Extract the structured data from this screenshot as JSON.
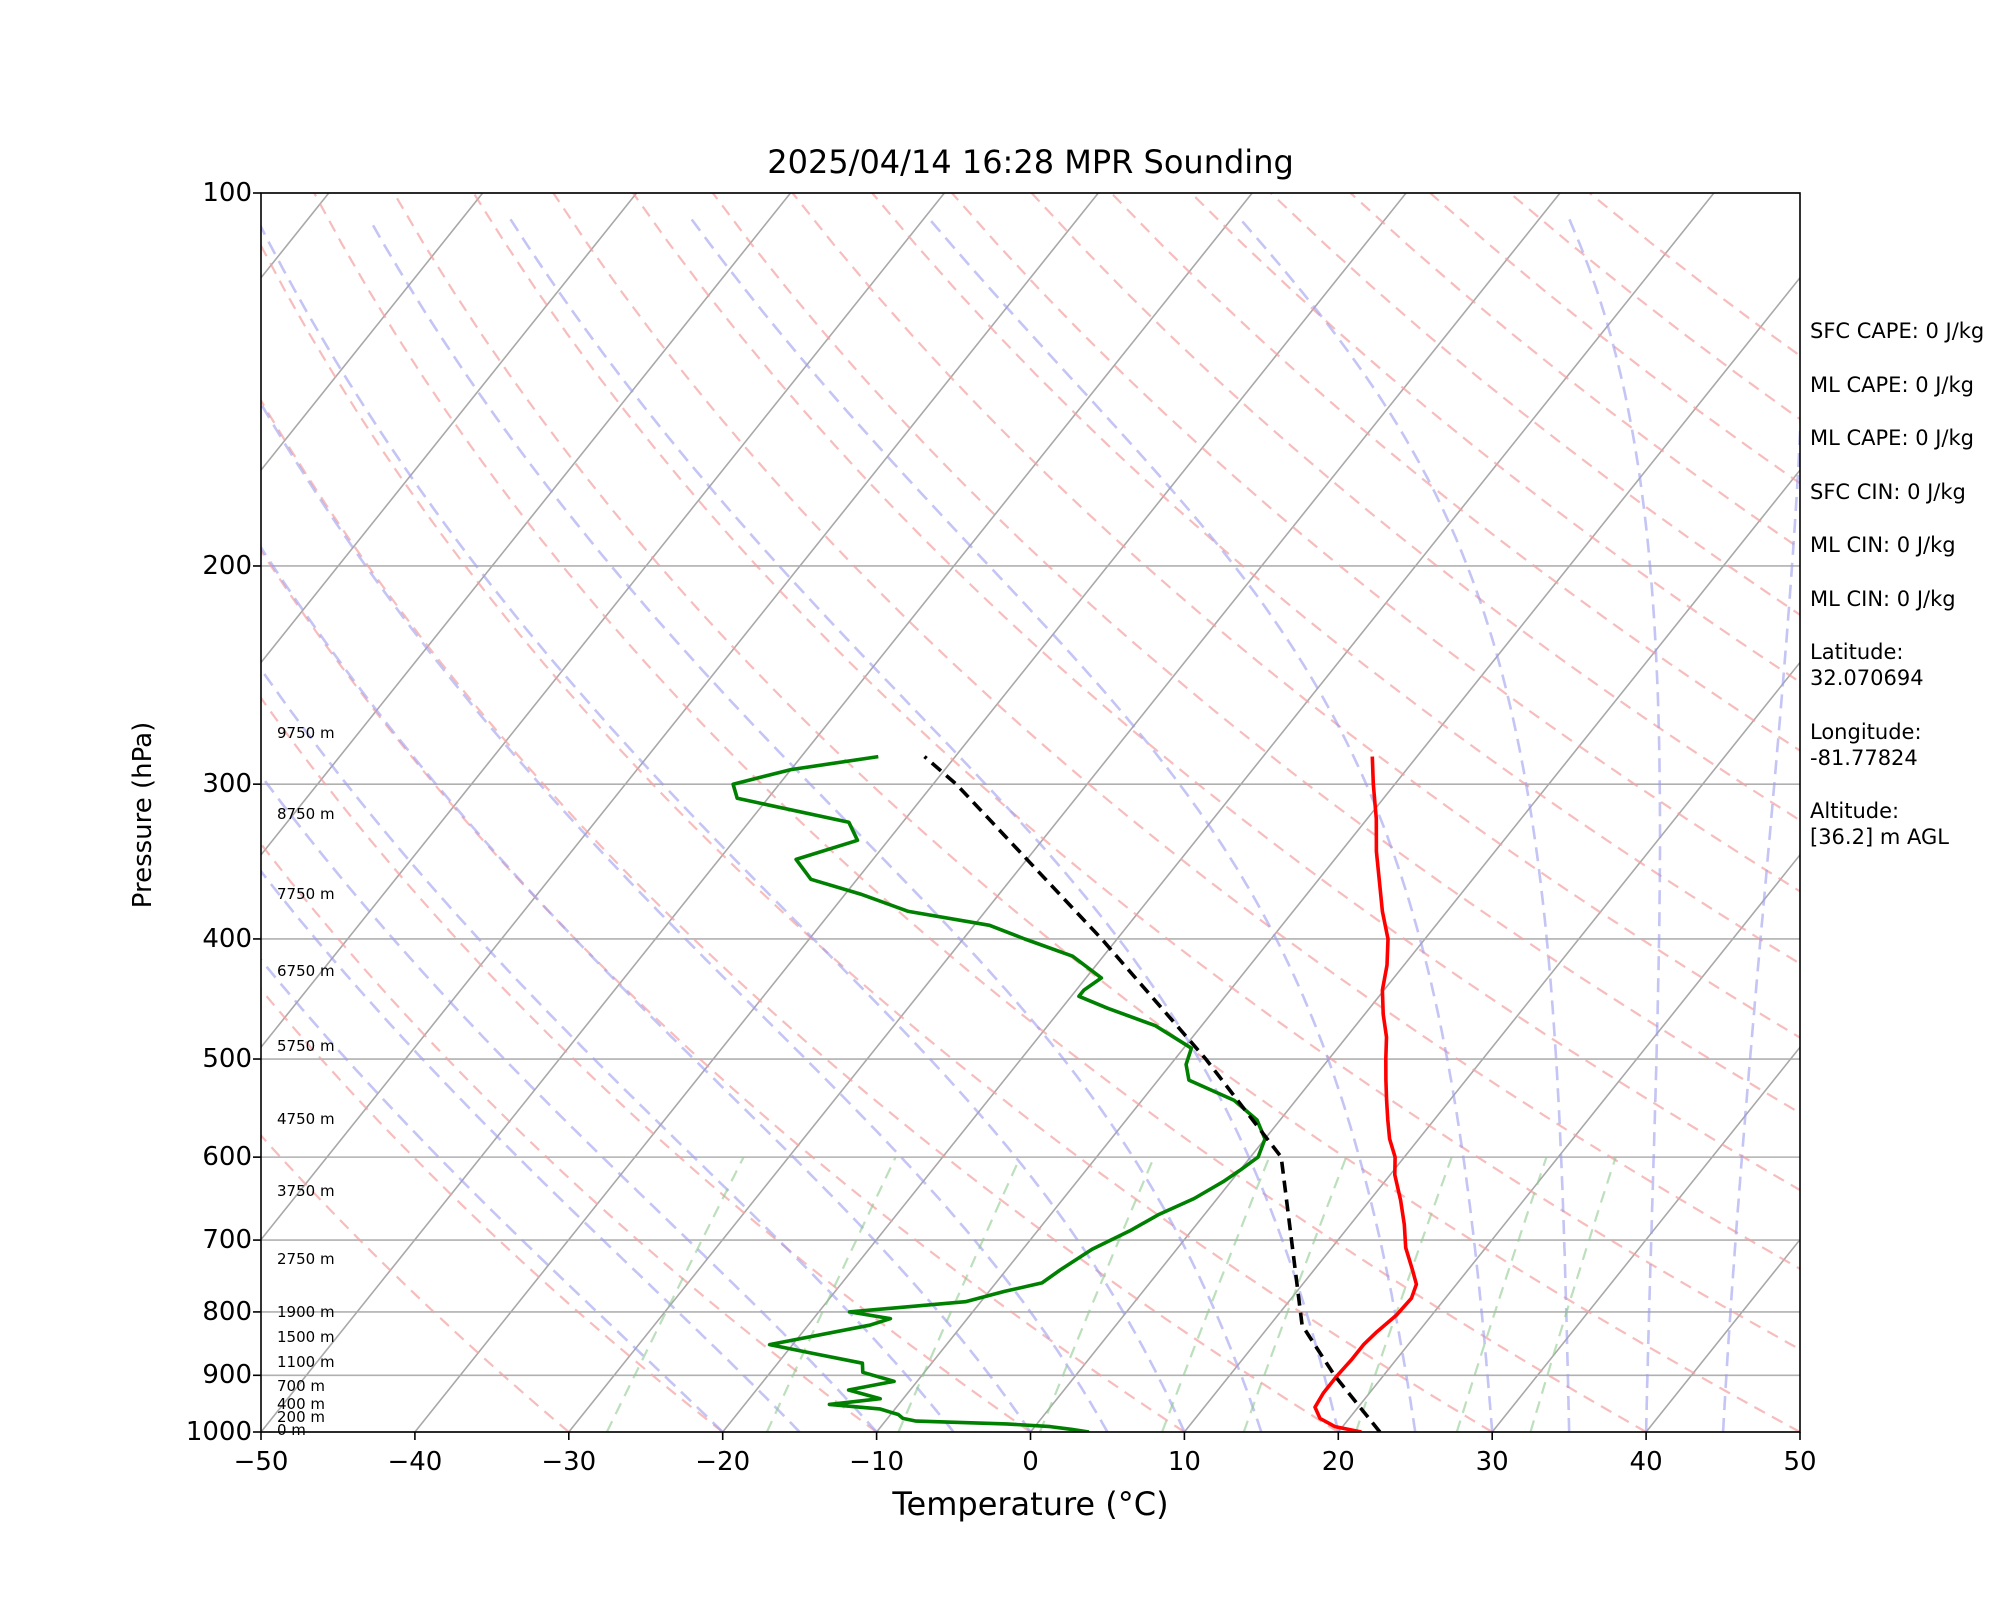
{
  "chart_data": {
    "type": "line",
    "title": "2025/04/14 16:28 MPR Sounding",
    "xlabel": "Temperature (°C)",
    "ylabel": "Pressure (hPa)",
    "xlim": [
      -50,
      50
    ],
    "ylim": [
      1000,
      100
    ],
    "y_scale": "log",
    "skew": "skew-T (isotherms slanted)",
    "grid": true,
    "x_ticks": [
      "−50",
      "−40",
      "−30",
      "−20",
      "−10",
      "0",
      "10",
      "20",
      "30",
      "40",
      "50"
    ],
    "y_ticks": [
      "100",
      "200",
      "300",
      "400",
      "500",
      "600",
      "700",
      "800",
      "900",
      "1000"
    ],
    "height_labels": [
      {
        "pressure": 1000,
        "text": "0 m"
      },
      {
        "pressure": 976,
        "text": "200 m"
      },
      {
        "pressure": 953,
        "text": "400 m"
      },
      {
        "pressure": 922,
        "text": "700 m"
      },
      {
        "pressure": 881,
        "text": "1100 m"
      },
      {
        "pressure": 841,
        "text": "1500 m"
      },
      {
        "pressure": 803,
        "text": "1900 m"
      },
      {
        "pressure": 728,
        "text": "2750 m"
      },
      {
        "pressure": 641,
        "text": "3750 m"
      },
      {
        "pressure": 561,
        "text": "4750 m"
      },
      {
        "pressure": 490,
        "text": "5750 m"
      },
      {
        "pressure": 426,
        "text": "6750 m"
      },
      {
        "pressure": 369,
        "text": "7750 m"
      },
      {
        "pressure": 318,
        "text": "8750 m"
      },
      {
        "pressure": 274,
        "text": "9750 m"
      }
    ],
    "series": [
      {
        "kind": "temperature",
        "color": "#ff0000",
        "points": [
          [
            1000,
            21.5
          ],
          [
            990,
            19.5
          ],
          [
            975,
            18.1
          ],
          [
            955,
            17.2
          ],
          [
            930,
            17.0
          ],
          [
            900,
            17.0
          ],
          [
            875,
            17.1
          ],
          [
            850,
            17.1
          ],
          [
            830,
            17.3
          ],
          [
            805,
            17.7
          ],
          [
            780,
            17.8
          ],
          [
            760,
            17.4
          ],
          [
            740,
            16.4
          ],
          [
            710,
            14.8
          ],
          [
            680,
            13.5
          ],
          [
            650,
            12.0
          ],
          [
            620,
            10.3
          ],
          [
            600,
            9.4
          ],
          [
            580,
            8.1
          ],
          [
            560,
            7.0
          ],
          [
            540,
            5.9
          ],
          [
            520,
            4.8
          ],
          [
            500,
            3.7
          ],
          [
            480,
            2.6
          ],
          [
            460,
            1.2
          ],
          [
            440,
            -0.1
          ],
          [
            420,
            -1.1
          ],
          [
            400,
            -2.4
          ],
          [
            380,
            -4.2
          ],
          [
            360,
            -5.9
          ],
          [
            340,
            -7.7
          ],
          [
            320,
            -9.4
          ],
          [
            300,
            -11.4
          ],
          [
            285,
            -12.9
          ]
        ]
      },
      {
        "kind": "dewpoint",
        "color": "#008000",
        "points": [
          [
            1000,
            3.8
          ],
          [
            995,
            2.5
          ],
          [
            990,
            1.0
          ],
          [
            985,
            -2.0
          ],
          [
            980,
            -8.0
          ],
          [
            975,
            -9.0
          ],
          [
            968,
            -9.5
          ],
          [
            958,
            -11.0
          ],
          [
            950,
            -14.5
          ],
          [
            940,
            -11.5
          ],
          [
            925,
            -14.0
          ],
          [
            910,
            -11.5
          ],
          [
            895,
            -14.0
          ],
          [
            880,
            -14.5
          ],
          [
            865,
            -18.0
          ],
          [
            850,
            -21.5
          ],
          [
            820,
            -16.0
          ],
          [
            810,
            -15.0
          ],
          [
            800,
            -18.0
          ],
          [
            785,
            -11.0
          ],
          [
            770,
            -9.0
          ],
          [
            758,
            -7.0
          ],
          [
            740,
            -6.5
          ],
          [
            712,
            -5.5
          ],
          [
            688,
            -4.0
          ],
          [
            668,
            -3.0
          ],
          [
            648,
            -1.5
          ],
          [
            628,
            -0.5
          ],
          [
            615,
            0.0
          ],
          [
            600,
            0.5
          ],
          [
            580,
            0.0
          ],
          [
            560,
            -1.5
          ],
          [
            540,
            -4.0
          ],
          [
            520,
            -8.0
          ],
          [
            505,
            -9.0
          ],
          [
            490,
            -9.5
          ],
          [
            470,
            -13.0
          ],
          [
            455,
            -17.0
          ],
          [
            445,
            -19.5
          ],
          [
            440,
            -19.5
          ],
          [
            430,
            -19.0
          ],
          [
            413,
            -22.0
          ],
          [
            400,
            -26.0
          ],
          [
            390,
            -29.0
          ],
          [
            380,
            -35.0
          ],
          [
            368,
            -39.0
          ],
          [
            358,
            -43.0
          ],
          [
            345,
            -45.0
          ],
          [
            333,
            -42.0
          ],
          [
            322,
            -43.5
          ],
          [
            308,
            -52.0
          ],
          [
            300,
            -53.0
          ],
          [
            292,
            -50.0
          ],
          [
            285,
            -45.0
          ]
        ]
      },
      {
        "kind": "parcel",
        "color": "#000000",
        "style": "dashed",
        "points": [
          [
            1000,
            22.7
          ],
          [
            900,
            16.8
          ],
          [
            820,
            12.1
          ],
          [
            600,
            2.0
          ],
          [
            500,
            -8.0
          ],
          [
            400,
            -21.0
          ],
          [
            300,
            -38.5
          ],
          [
            285,
            -42.0
          ]
        ]
      }
    ]
  },
  "parameters": [
    "SFC CAPE: 0 J/kg",
    "ML CAPE: 0 J/kg",
    "ML CAPE: 0 J/kg",
    "SFC CIN: 0 J/kg",
    "ML CIN: 0 J/kg",
    "ML CIN: 0 J/kg",
    "Latitude:\n32.070694",
    "Longitude:\n-81.77824",
    "Altitude:\n[36.2] m AGL"
  ]
}
